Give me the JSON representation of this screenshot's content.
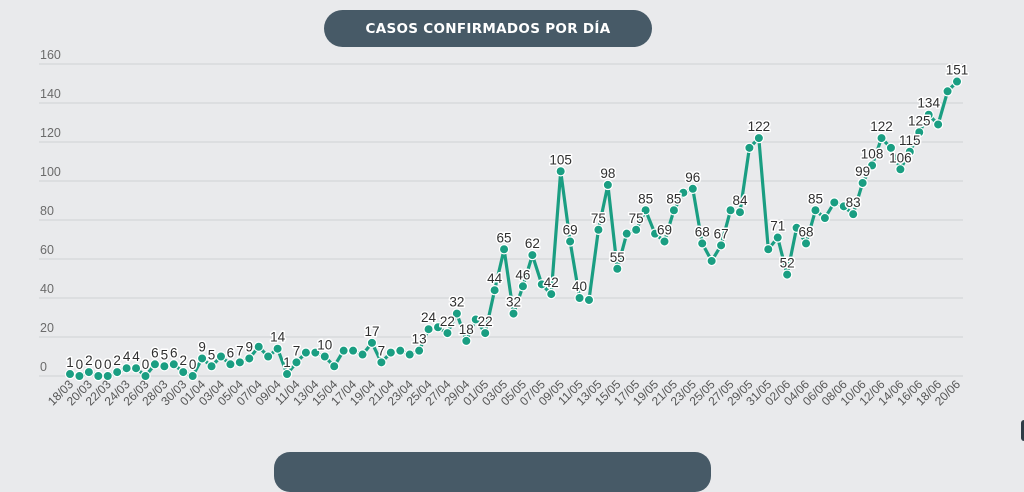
{
  "header": {
    "title": "CASOS CONFIRMADOS POR DÍA"
  },
  "colors": {
    "series": "#1a9e82",
    "pill": "#475a67",
    "background": "#e9eaec"
  },
  "chart_data": {
    "type": "line",
    "title": "CASOS CONFIRMADOS POR DÍA",
    "xlabel": "",
    "ylabel": "",
    "ylim": [
      0,
      160
    ],
    "y_ticks": [
      0,
      20,
      40,
      60,
      80,
      100,
      120,
      140,
      160
    ],
    "grid": true,
    "legend": "none",
    "x": [
      "18/03",
      "19/03",
      "20/03",
      "21/03",
      "22/03",
      "23/03",
      "24/03",
      "25/03",
      "26/03",
      "27/03",
      "28/03",
      "29/03",
      "30/03",
      "31/03",
      "01/04",
      "02/04",
      "03/04",
      "04/04",
      "05/04",
      "06/04",
      "07/04",
      "08/04",
      "09/04",
      "10/04",
      "11/04",
      "12/04",
      "13/04",
      "14/04",
      "15/04",
      "16/04",
      "17/04",
      "18/04",
      "19/04",
      "20/04",
      "21/04",
      "22/04",
      "23/04",
      "24/04",
      "25/04",
      "26/04",
      "27/04",
      "28/04",
      "29/04",
      "30/04",
      "01/05",
      "02/05",
      "03/05",
      "04/05",
      "05/05",
      "06/05",
      "07/05",
      "08/05",
      "09/05",
      "10/05",
      "11/05",
      "12/05",
      "13/05",
      "14/05",
      "15/05",
      "16/05",
      "17/05",
      "18/05",
      "19/05",
      "20/05",
      "21/05",
      "22/05",
      "23/05",
      "24/05",
      "25/05",
      "26/05",
      "27/05",
      "28/05",
      "29/05",
      "30/05",
      "31/05",
      "01/06",
      "02/06",
      "03/06",
      "04/06",
      "05/06",
      "06/06",
      "07/06",
      "08/06",
      "09/06",
      "10/06",
      "11/06",
      "12/06",
      "13/06",
      "14/06",
      "15/06",
      "16/06",
      "17/06",
      "18/06",
      "19/06",
      "20/06"
    ],
    "x_tick_labels": [
      "18/03",
      "20/03",
      "22/03",
      "24/03",
      "26/03",
      "28/03",
      "30/03",
      "01/04",
      "03/04",
      "05/04",
      "07/04",
      "09/04",
      "11/04",
      "13/04",
      "15/04",
      "17/04",
      "19/04",
      "21/04",
      "23/04",
      "25/04",
      "27/04",
      "29/04",
      "01/05",
      "03/05",
      "05/05",
      "07/05",
      "09/05",
      "11/05",
      "13/05",
      "15/05",
      "17/05",
      "19/05",
      "21/05",
      "23/05",
      "25/05",
      "27/05",
      "29/05",
      "31/05",
      "02/06",
      "04/06",
      "06/06",
      "08/06",
      "10/06",
      "12/06",
      "14/06",
      "16/06",
      "18/06",
      "20/06"
    ],
    "series": [
      {
        "name": "Casos confirmados",
        "values": [
          1,
          0,
          2,
          0,
          0,
          2,
          4,
          4,
          0,
          6,
          5,
          6,
          2,
          0,
          9,
          5,
          10,
          6,
          7,
          9,
          15,
          10,
          14,
          1,
          7,
          12,
          12,
          10,
          5,
          13,
          13,
          11,
          17,
          7,
          12,
          13,
          11,
          13,
          24,
          25,
          22,
          32,
          18,
          29,
          22,
          44,
          65,
          32,
          46,
          62,
          47,
          42,
          105,
          69,
          40,
          39,
          75,
          98,
          55,
          73,
          75,
          85,
          73,
          69,
          85,
          94,
          96,
          68,
          59,
          67,
          85,
          84,
          117,
          122,
          65,
          71,
          52,
          76,
          68,
          85,
          81,
          89,
          87,
          83,
          99,
          108,
          122,
          117,
          106,
          115,
          125,
          134,
          129,
          146,
          151
        ],
        "data_labels": [
          "1",
          "0",
          "2",
          "0",
          "0",
          "2",
          "4",
          "4",
          "0",
          "6",
          "5",
          "6",
          "2",
          "0",
          "9",
          "5",
          "",
          "6",
          "7",
          "9",
          "",
          "",
          "14",
          "1",
          "7",
          "",
          "",
          "10",
          "",
          "",
          "",
          "",
          "17",
          "7",
          "",
          "",
          "",
          "13",
          "24",
          "",
          "22",
          "32",
          "18",
          "",
          "22",
          "44",
          "65",
          "32",
          "46",
          "62",
          "",
          "42",
          "105",
          "69",
          "40",
          "",
          "75",
          "98",
          "55",
          "",
          "75",
          "85",
          "",
          "69",
          "85",
          "",
          "96",
          "68",
          "",
          "67",
          "",
          "84",
          "",
          "122",
          "",
          "71",
          "52",
          "",
          "68",
          "85",
          "",
          "",
          "",
          "83",
          "99",
          "108",
          "122",
          "",
          "106",
          "115",
          "125",
          "134",
          "",
          "",
          "151"
        ]
      }
    ]
  }
}
